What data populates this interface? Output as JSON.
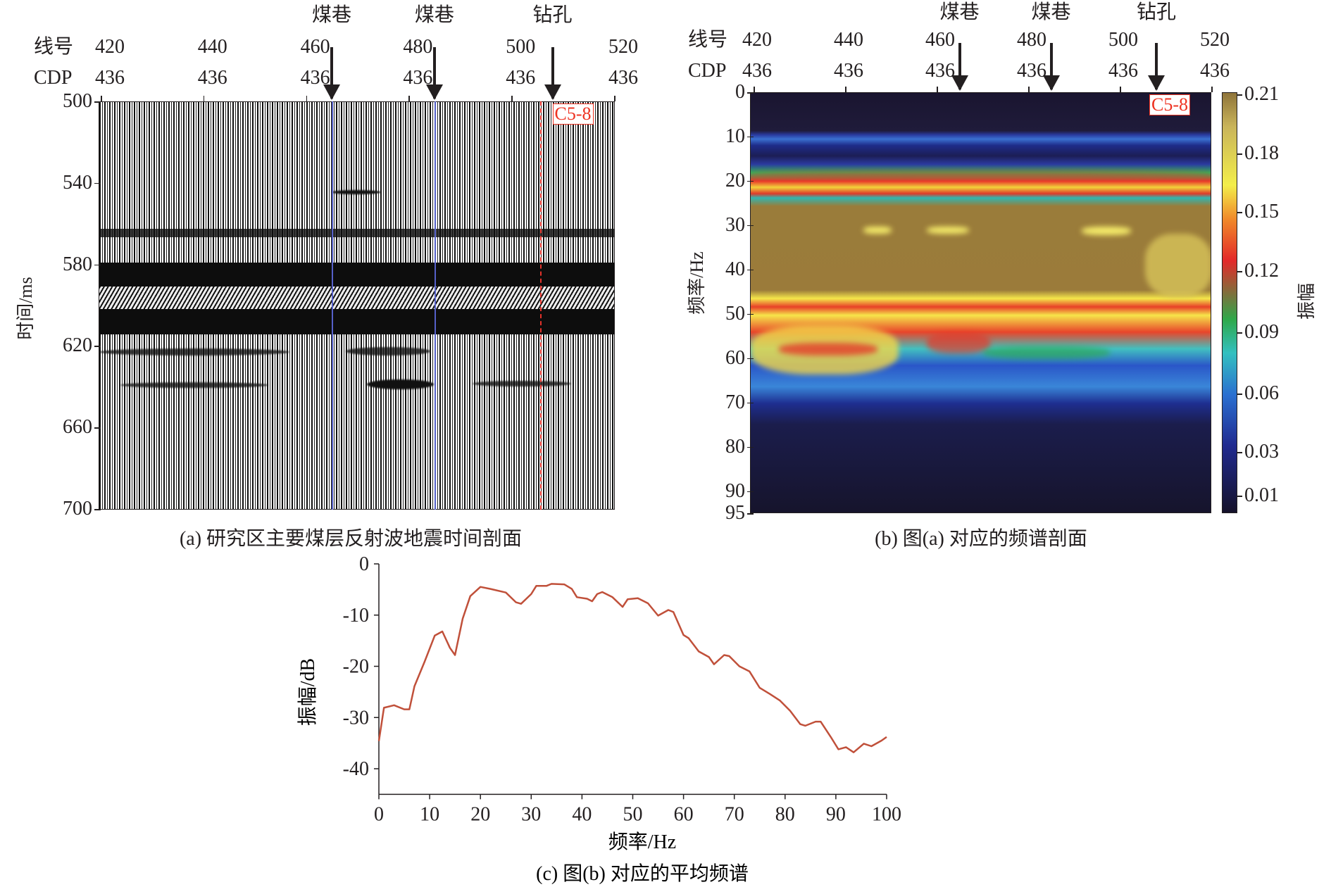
{
  "panel_a": {
    "caption": "(a) 研究区主要煤层反射波地震时间剖面",
    "ylabel": "时间/ms",
    "row1_label": "线号",
    "row2_label": "CDP",
    "line_numbers": [
      "420",
      "440",
      "460",
      "480",
      "500",
      "520"
    ],
    "cdp_numbers": [
      "436",
      "436",
      "436",
      "436",
      "436",
      "436"
    ],
    "y_ticks": [
      "500",
      "540",
      "580",
      "620",
      "660",
      "700"
    ],
    "y_tick_values": [
      500,
      540,
      580,
      620,
      660,
      700
    ],
    "markers": [
      {
        "label": "煤巷",
        "line": 465
      },
      {
        "label": "煤巷",
        "line": 485
      },
      {
        "label": "钻孔",
        "line": 508
      }
    ],
    "well_label": "C5-8",
    "colors": {
      "roadway_line": "#5560c8",
      "well_line": "#e3322a"
    }
  },
  "panel_b": {
    "caption": "(b) 图(a) 对应的频谱剖面",
    "ylabel": "频率/Hz",
    "row1_label": "线号",
    "row2_label": "CDP",
    "line_numbers": [
      "420",
      "440",
      "460",
      "480",
      "500",
      "520"
    ],
    "cdp_numbers": [
      "436",
      "436",
      "436",
      "436",
      "436",
      "436"
    ],
    "y_ticks": [
      "0",
      "10",
      "20",
      "30",
      "40",
      "50",
      "60",
      "70",
      "80",
      "90",
      "95"
    ],
    "y_tick_values": [
      0,
      10,
      20,
      30,
      40,
      50,
      60,
      70,
      80,
      90,
      95
    ],
    "markers": [
      {
        "label": "煤巷",
        "line": 465
      },
      {
        "label": "煤巷",
        "line": 485
      },
      {
        "label": "钻孔",
        "line": 508
      }
    ],
    "well_label": "C5-8",
    "colorbar": {
      "label": "振幅",
      "ticks": [
        "0.21",
        "0.18",
        "0.15",
        "0.12",
        "0.09",
        "0.06",
        "0.03",
        "0.01"
      ]
    }
  },
  "chart_data": {
    "type": "line",
    "title": "(c) 图(b) 对应的平均频谱",
    "xlabel": "频率/Hz",
    "ylabel": "振幅/dB",
    "xlim": [
      0,
      100
    ],
    "ylim": [
      -45,
      0
    ],
    "x_ticks": [
      "0",
      "10",
      "20",
      "30",
      "40",
      "50",
      "60",
      "70",
      "80",
      "90",
      "100"
    ],
    "y_ticks": [
      "0",
      "-10",
      "-20",
      "-30",
      "-40"
    ],
    "grid": false,
    "series": [
      {
        "name": "平均频谱",
        "color": "#c0503a",
        "x": [
          0,
          1,
          3,
          5,
          6,
          7,
          9,
          11,
          12.5,
          14,
          15,
          16.5,
          18,
          20,
          22,
          25,
          27,
          28,
          30,
          31,
          33,
          34,
          36.5,
          38,
          39,
          41,
          42,
          43,
          44,
          46,
          48,
          49,
          51,
          53,
          55,
          57,
          58,
          60,
          61,
          63,
          65,
          66,
          68,
          69,
          71,
          73,
          75,
          77,
          79,
          81,
          83,
          84,
          86,
          87,
          89,
          90.5,
          92,
          93.5,
          95.5,
          97,
          99,
          100
        ],
        "y": [
          -34.6,
          -28.1,
          -27.6,
          -28.4,
          -28.4,
          -23.9,
          -19.1,
          -14,
          -13.2,
          -16.4,
          -17.8,
          -10.7,
          -6.3,
          -4.5,
          -4.9,
          -5.6,
          -7.5,
          -7.8,
          -5.9,
          -4.3,
          -4.3,
          -3.9,
          -4,
          -4.9,
          -6.5,
          -6.8,
          -7.3,
          -5.9,
          -5.5,
          -6.5,
          -8.4,
          -6.9,
          -6.7,
          -7.7,
          -10.1,
          -9,
          -9.4,
          -13.9,
          -14.5,
          -17.1,
          -18.2,
          -19.6,
          -17.8,
          -18,
          -20,
          -21,
          -24.2,
          -25.4,
          -26.7,
          -28.7,
          -31.3,
          -31.6,
          -30.8,
          -30.8,
          -33.8,
          -36.2,
          -35.8,
          -36.8,
          -35.1,
          -35.6,
          -34.5,
          -33.8
        ]
      }
    ]
  }
}
